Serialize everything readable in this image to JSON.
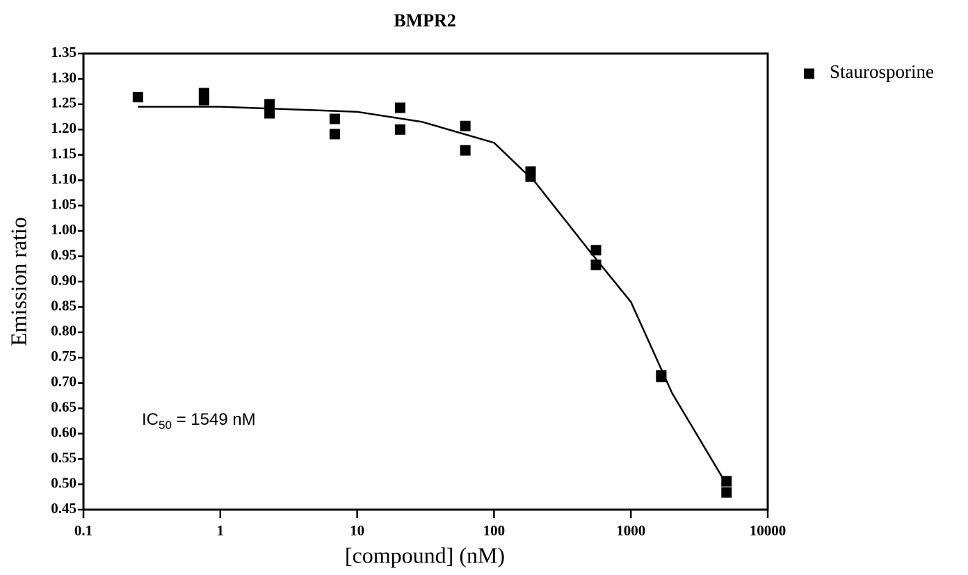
{
  "chart_data": {
    "type": "scatter",
    "title": "BMPR2",
    "x_label": "[compound] (nM)",
    "y_label": "Emission ratio",
    "x_scale": "log",
    "xlim": [
      0.1,
      10000
    ],
    "xticks": [
      0.1,
      1,
      10,
      100,
      1000,
      10000
    ],
    "ylim": [
      0.45,
      1.35
    ],
    "yticks": [
      0.45,
      {
        "value": 0.5,
        "label": "0.50"
      },
      0.55,
      {
        "value": 0.6,
        "label": "0.60"
      },
      0.65,
      {
        "value": 0.7,
        "label": "0.70"
      },
      0.75,
      {
        "value": 0.8,
        "label": "0.80"
      },
      0.85,
      {
        "value": 0.9,
        "label": "0.90"
      },
      0.95,
      {
        "value": 1.0,
        "label": "1.00"
      },
      1.05,
      {
        "value": 1.1,
        "label": "1.10"
      },
      1.15,
      {
        "value": 1.2,
        "label": "1.20"
      },
      1.25,
      {
        "value": 1.3,
        "label": "1.30"
      },
      1.35
    ],
    "grid": false,
    "legend": "top-right",
    "series": [
      {
        "name": "Staurosporine",
        "color": "#000000",
        "x": [
          0.25,
          0.76,
          0.76,
          2.29,
          2.29,
          6.86,
          6.86,
          20.6,
          20.6,
          61.7,
          61.7,
          185,
          185,
          556,
          556,
          1667,
          1667,
          5000,
          5000
        ],
        "values": [
          1.264,
          1.272,
          1.258,
          1.25,
          1.232,
          1.221,
          1.191,
          1.243,
          1.2,
          1.207,
          1.159,
          1.117,
          1.107,
          0.962,
          0.933,
          0.715,
          0.712,
          0.506,
          0.484
        ]
      }
    ],
    "fit": {
      "color": "#000000",
      "x": [
        0.25,
        1,
        10,
        30,
        100,
        200,
        500,
        1000,
        2000,
        5000
      ],
      "values": [
        1.245,
        1.245,
        1.235,
        1.215,
        1.174,
        1.096,
        0.96,
        0.86,
        0.68,
        0.5
      ]
    },
    "annotation": {
      "text": "IC",
      "subscript": "50",
      "rest": " = 1549 nM"
    }
  }
}
